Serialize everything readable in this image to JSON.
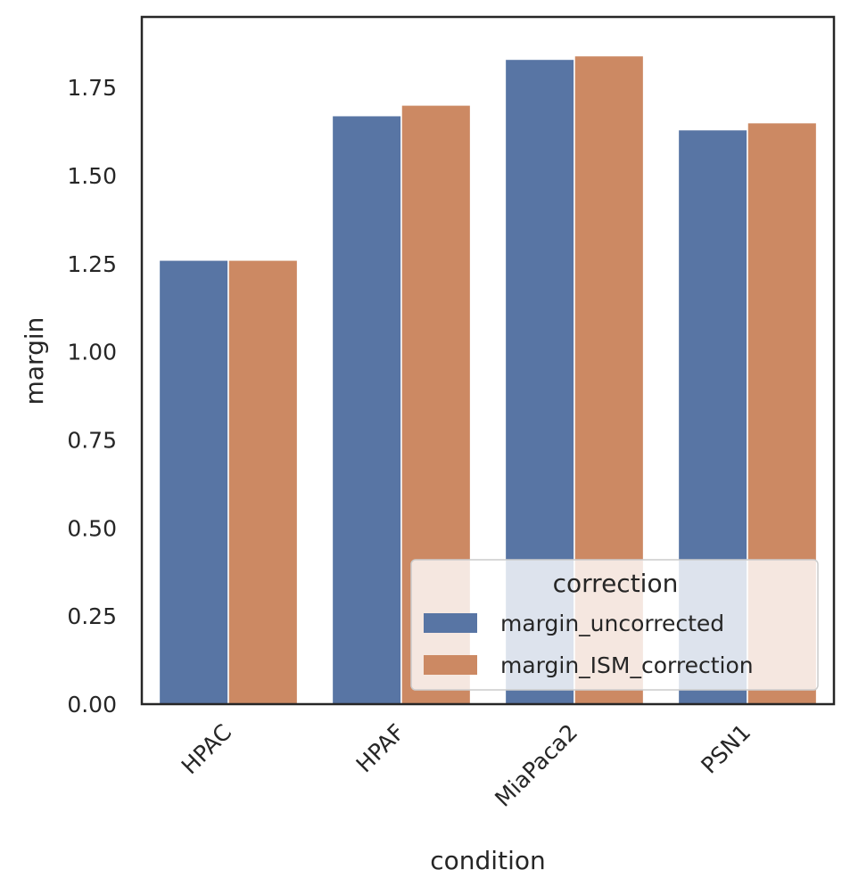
{
  "chart_data": {
    "type": "bar",
    "xlabel": "condition",
    "ylabel": "margin",
    "categories": [
      "HPAC",
      "HPAF",
      "MiaPaca2",
      "PSN1"
    ],
    "series": [
      {
        "name": "margin_uncorrected",
        "color": "#5875a4",
        "values": [
          1.26,
          1.67,
          1.83,
          1.63
        ]
      },
      {
        "name": "margin_ISM_correction",
        "color": "#cc8963",
        "values": [
          1.26,
          1.7,
          1.84,
          1.65
        ]
      }
    ],
    "ylim": [
      0,
      1.95
    ],
    "yticks": [
      "0.00",
      "0.25",
      "0.50",
      "0.75",
      "1.00",
      "1.25",
      "1.50",
      "1.75"
    ],
    "grid": false,
    "legend": {
      "title": "correction",
      "placement": "lower right"
    }
  }
}
